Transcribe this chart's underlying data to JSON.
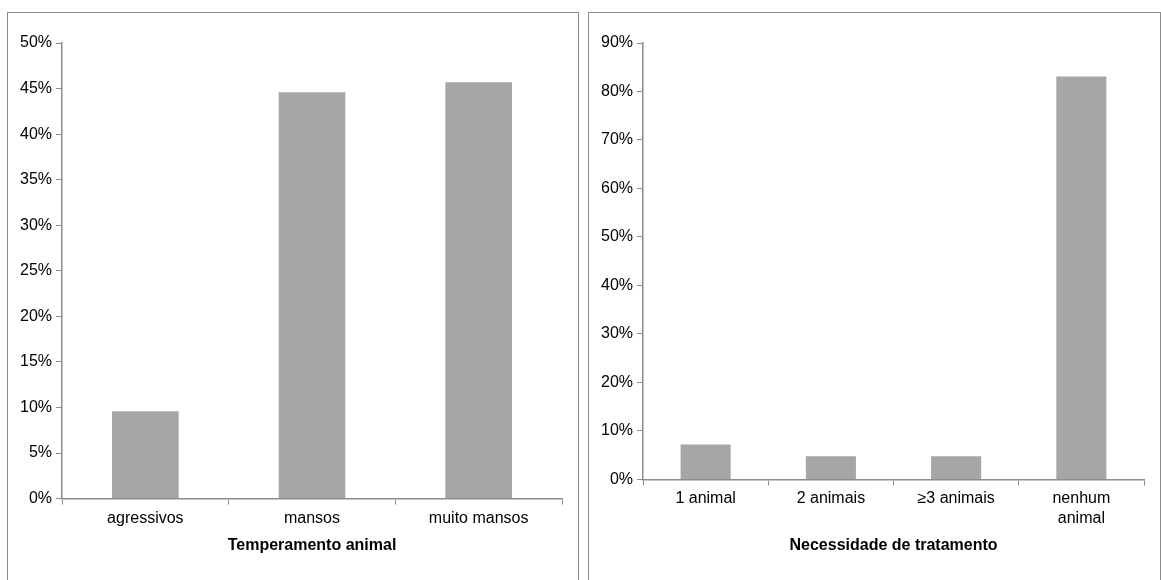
{
  "chart_data": [
    {
      "type": "bar",
      "xlabel": "Temperamento animal",
      "categories": [
        "agressivos",
        "mansos",
        "muito mansos"
      ],
      "values": [
        9.6,
        44.6,
        45.7
      ],
      "color": "#a6a6a6",
      "ylim": [
        0,
        50
      ],
      "yticks": [
        {
          "value": 0,
          "label": "0%"
        },
        {
          "value": 5,
          "label": "5%"
        },
        {
          "value": 10,
          "label": "10%"
        },
        {
          "value": 15,
          "label": "15%"
        },
        {
          "value": 20,
          "label": "20%"
        },
        {
          "value": 25,
          "label": "25%"
        },
        {
          "value": 30,
          "label": "30%"
        },
        {
          "value": 35,
          "label": "35%"
        },
        {
          "value": 40,
          "label": "40%"
        },
        {
          "value": 45,
          "label": "45%"
        },
        {
          "value": 50,
          "label": "50%"
        }
      ],
      "grid": false,
      "legend": false
    },
    {
      "type": "bar",
      "xlabel": "Necessidade de tratamento",
      "categories": [
        "1 animal",
        "2 animais",
        "≥3 animais",
        "nenhum animal"
      ],
      "values": [
        7.2,
        4.8,
        4.8,
        83.1
      ],
      "color": "#a6a6a6",
      "ylim": [
        0,
        90
      ],
      "yticks": [
        {
          "value": 0,
          "label": "0%"
        },
        {
          "value": 10,
          "label": "10%"
        },
        {
          "value": 20,
          "label": "20%"
        },
        {
          "value": 30,
          "label": "30%"
        },
        {
          "value": 40,
          "label": "40%"
        },
        {
          "value": 50,
          "label": "50%"
        },
        {
          "value": 60,
          "label": "60%"
        },
        {
          "value": 70,
          "label": "70%"
        },
        {
          "value": 80,
          "label": "80%"
        },
        {
          "value": 90,
          "label": "90%"
        }
      ],
      "grid": false,
      "legend": false
    }
  ]
}
